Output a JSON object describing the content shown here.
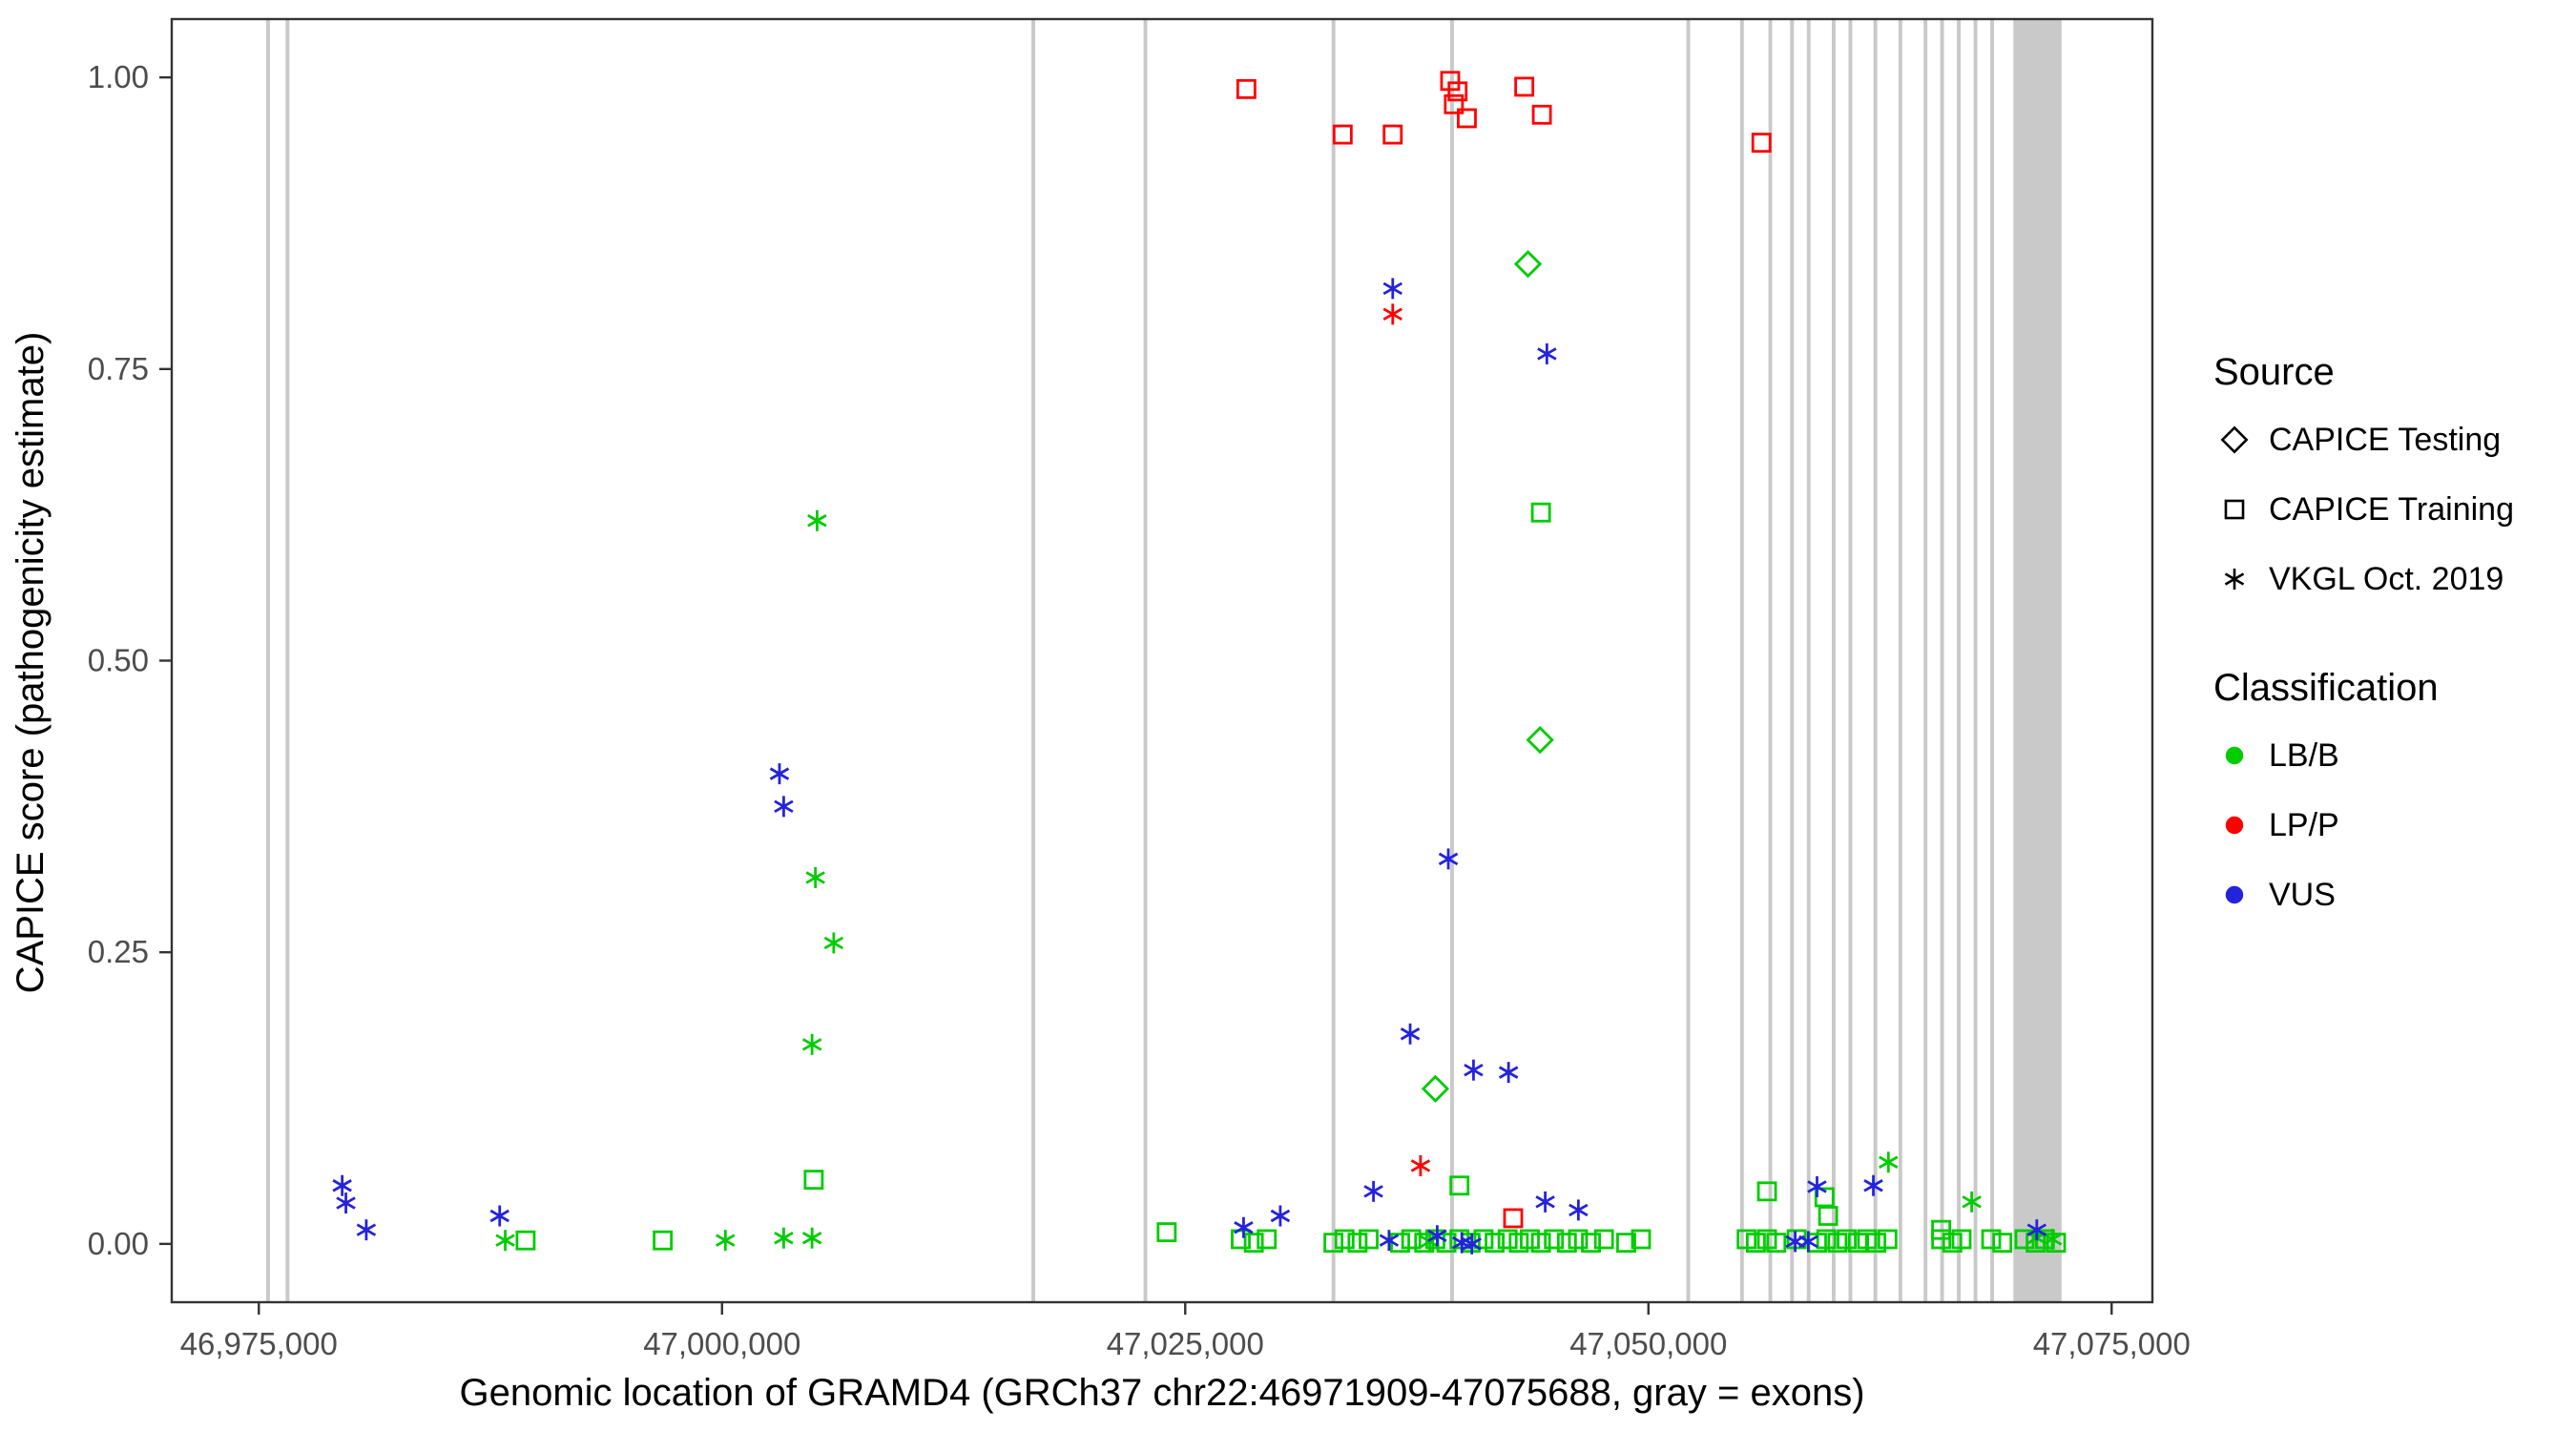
{
  "chart_data": {
    "type": "scatter",
    "title": "",
    "xlabel": "Genomic location of GRAMD4 (GRCh37 chr22:46971909-47075688, gray = exons)",
    "ylabel": "CAPICE score (pathogenicity estimate)",
    "xlim": [
      46970300,
      47077200
    ],
    "ylim": [
      -0.05,
      1.05
    ],
    "grid": false,
    "legend_position": "right",
    "x_ticks": [
      {
        "value": 46975000,
        "label": "46,975,000"
      },
      {
        "value": 47000000,
        "label": "47,000,000"
      },
      {
        "value": 47025000,
        "label": "47,025,000"
      },
      {
        "value": 47050000,
        "label": "47,050,000"
      },
      {
        "value": 47075000,
        "label": "47,075,000"
      }
    ],
    "y_ticks": [
      {
        "value": 0.0,
        "label": "0.00"
      },
      {
        "value": 0.25,
        "label": "0.25"
      },
      {
        "value": 0.5,
        "label": "0.50"
      },
      {
        "value": 0.75,
        "label": "0.75"
      },
      {
        "value": 1.0,
        "label": "1.00"
      }
    ],
    "colors": {
      "LB/B": "#00CC00",
      "LP/P": "#FF0000",
      "VUS": "#2323DC",
      "exon": "#C9C9C9",
      "axis": "#333333",
      "tick_label": "#4D4D4D",
      "legend_glyph": "#000000"
    },
    "exons": [
      [
        46975400,
        46975600
      ],
      [
        46976450,
        46976650
      ],
      [
        47016700,
        47016900
      ],
      [
        47022750,
        47022950
      ],
      [
        47032900,
        47033100
      ],
      [
        47039300,
        47039500
      ],
      [
        47052050,
        47052250
      ],
      [
        47054950,
        47055150
      ],
      [
        47056480,
        47056680
      ],
      [
        47057650,
        47057850
      ],
      [
        47058550,
        47058750
      ],
      [
        47059900,
        47060100
      ],
      [
        47060800,
        47061000
      ],
      [
        47062150,
        47062350
      ],
      [
        47063500,
        47063700
      ],
      [
        47064850,
        47065050
      ],
      [
        47065750,
        47065950
      ],
      [
        47066650,
        47066850
      ],
      [
        47067550,
        47067750
      ],
      [
        47068450,
        47068650
      ],
      [
        47069700,
        47072300
      ]
    ],
    "legend": {
      "source": {
        "title": "Source",
        "items": [
          {
            "label": "CAPICE Testing",
            "shape": "diamond"
          },
          {
            "label": "CAPICE Training",
            "shape": "square"
          },
          {
            "label": "VKGL Oct. 2019",
            "shape": "asterisk"
          }
        ]
      },
      "classification": {
        "title": "Classification",
        "items": [
          {
            "label": "LB/B",
            "color": "#00CC00"
          },
          {
            "label": "LP/P",
            "color": "#FF0000"
          },
          {
            "label": "VUS",
            "color": "#2323DC"
          }
        ]
      }
    },
    "series": [
      {
        "id": "capice-training-lpp",
        "source": "CAPICE Training",
        "shape": "square",
        "classification": "LP/P",
        "points": [
          [
            47028300,
            0.99
          ],
          [
            47033500,
            0.951
          ],
          [
            47036200,
            0.951
          ],
          [
            47039300,
            0.997
          ],
          [
            47039700,
            0.988
          ],
          [
            47039500,
            0.977
          ],
          [
            47040200,
            0.965
          ],
          [
            47043300,
            0.992
          ],
          [
            47044250,
            0.968
          ],
          [
            47056100,
            0.944
          ],
          [
            47042700,
            0.022
          ]
        ]
      },
      {
        "id": "capice-training-lbb",
        "source": "CAPICE Training",
        "shape": "square",
        "classification": "LB/B",
        "points": [
          [
            46989400,
            0.003
          ],
          [
            46996800,
            0.003
          ],
          [
            47004950,
            0.055
          ],
          [
            47024000,
            0.01
          ],
          [
            47028000,
            0.004
          ],
          [
            47028700,
            0.001
          ],
          [
            47029400,
            0.004
          ],
          [
            47033000,
            0.001
          ],
          [
            47033600,
            0.004
          ],
          [
            47034300,
            0.001
          ],
          [
            47034900,
            0.004
          ],
          [
            47036600,
            0.001
          ],
          [
            47037200,
            0.004
          ],
          [
            47037900,
            0.001
          ],
          [
            47038500,
            0.004
          ],
          [
            47039100,
            0.001
          ],
          [
            47039800,
            0.05
          ],
          [
            47039800,
            0.004
          ],
          [
            47040400,
            0.001
          ],
          [
            47041100,
            0.004
          ],
          [
            47041700,
            0.001
          ],
          [
            47042400,
            0.004
          ],
          [
            47043000,
            0.001
          ],
          [
            47043600,
            0.004
          ],
          [
            47044200,
            0.627
          ],
          [
            47044200,
            0.001
          ],
          [
            47044900,
            0.004
          ],
          [
            47045600,
            0.001
          ],
          [
            47046200,
            0.004
          ],
          [
            47046900,
            0.001
          ],
          [
            47047600,
            0.004
          ],
          [
            47048800,
            0.001
          ],
          [
            47049600,
            0.004
          ],
          [
            47055300,
            0.004
          ],
          [
            47055800,
            0.001
          ],
          [
            47056400,
            0.045
          ],
          [
            47056400,
            0.004
          ],
          [
            47056900,
            0.001
          ],
          [
            47058000,
            0.004
          ],
          [
            47059100,
            0.001
          ],
          [
            47059500,
            0.04
          ],
          [
            47059700,
            0.024
          ],
          [
            47059600,
            0.004
          ],
          [
            47060200,
            0.001
          ],
          [
            47060700,
            0.004
          ],
          [
            47061300,
            0.001
          ],
          [
            47061800,
            0.004
          ],
          [
            47062300,
            0.001
          ],
          [
            47062900,
            0.004
          ],
          [
            47065800,
            0.012
          ],
          [
            47065800,
            0.004
          ],
          [
            47066400,
            0.001
          ],
          [
            47066900,
            0.004
          ],
          [
            47068500,
            0.004
          ],
          [
            47069100,
            0.001
          ],
          [
            47070300,
            0.004
          ],
          [
            47070900,
            0.001
          ],
          [
            47071400,
            0.004
          ],
          [
            47072000,
            0.001
          ]
        ]
      },
      {
        "id": "capice-testing-lbb",
        "source": "CAPICE Testing",
        "shape": "diamond",
        "classification": "LB/B",
        "points": [
          [
            47043500,
            0.84
          ],
          [
            47044150,
            0.432
          ],
          [
            47038500,
            0.133
          ]
        ]
      },
      {
        "id": "vkgl-lbb",
        "source": "VKGL Oct. 2019",
        "shape": "asterisk",
        "classification": "LB/B",
        "points": [
          [
            47005130,
            0.62
          ],
          [
            47005040,
            0.314
          ],
          [
            47006030,
            0.258
          ],
          [
            47004860,
            0.171
          ],
          [
            46988300,
            0.003
          ],
          [
            47000180,
            0.003
          ],
          [
            47003330,
            0.005
          ],
          [
            47004860,
            0.005
          ],
          [
            47038200,
            0.002
          ],
          [
            47062950,
            0.07
          ],
          [
            47067450,
            0.036
          ],
          [
            47070960,
            0.005
          ],
          [
            47071800,
            0.004
          ]
        ]
      },
      {
        "id": "vkgl-lpp",
        "source": "VKGL Oct. 2019",
        "shape": "asterisk",
        "classification": "LP/P",
        "points": [
          [
            47036200,
            0.797
          ],
          [
            47037700,
            0.067
          ]
        ]
      },
      {
        "id": "vkgl-vus",
        "source": "VKGL Oct. 2019",
        "shape": "asterisk",
        "classification": "VUS",
        "points": [
          [
            46979500,
            0.05
          ],
          [
            46979700,
            0.035
          ],
          [
            46980800,
            0.012
          ],
          [
            46988000,
            0.024
          ],
          [
            47003100,
            0.403
          ],
          [
            47003330,
            0.375
          ],
          [
            47036200,
            0.819
          ],
          [
            47044520,
            0.763
          ],
          [
            47039200,
            0.33
          ],
          [
            47037140,
            0.18
          ],
          [
            47040560,
            0.149
          ],
          [
            47042450,
            0.147
          ],
          [
            47035160,
            0.045
          ],
          [
            47028150,
            0.014
          ],
          [
            47030130,
            0.024
          ],
          [
            47036000,
            0.003
          ],
          [
            47038600,
            0.007
          ],
          [
            47039930,
            0.001
          ],
          [
            47040470,
            0.0
          ],
          [
            47044430,
            0.036
          ],
          [
            47046220,
            0.029
          ],
          [
            47059100,
            0.049
          ],
          [
            47057920,
            0.002
          ],
          [
            47058630,
            0.002
          ],
          [
            47062140,
            0.05
          ],
          [
            47070960,
            0.012
          ]
        ]
      }
    ]
  }
}
